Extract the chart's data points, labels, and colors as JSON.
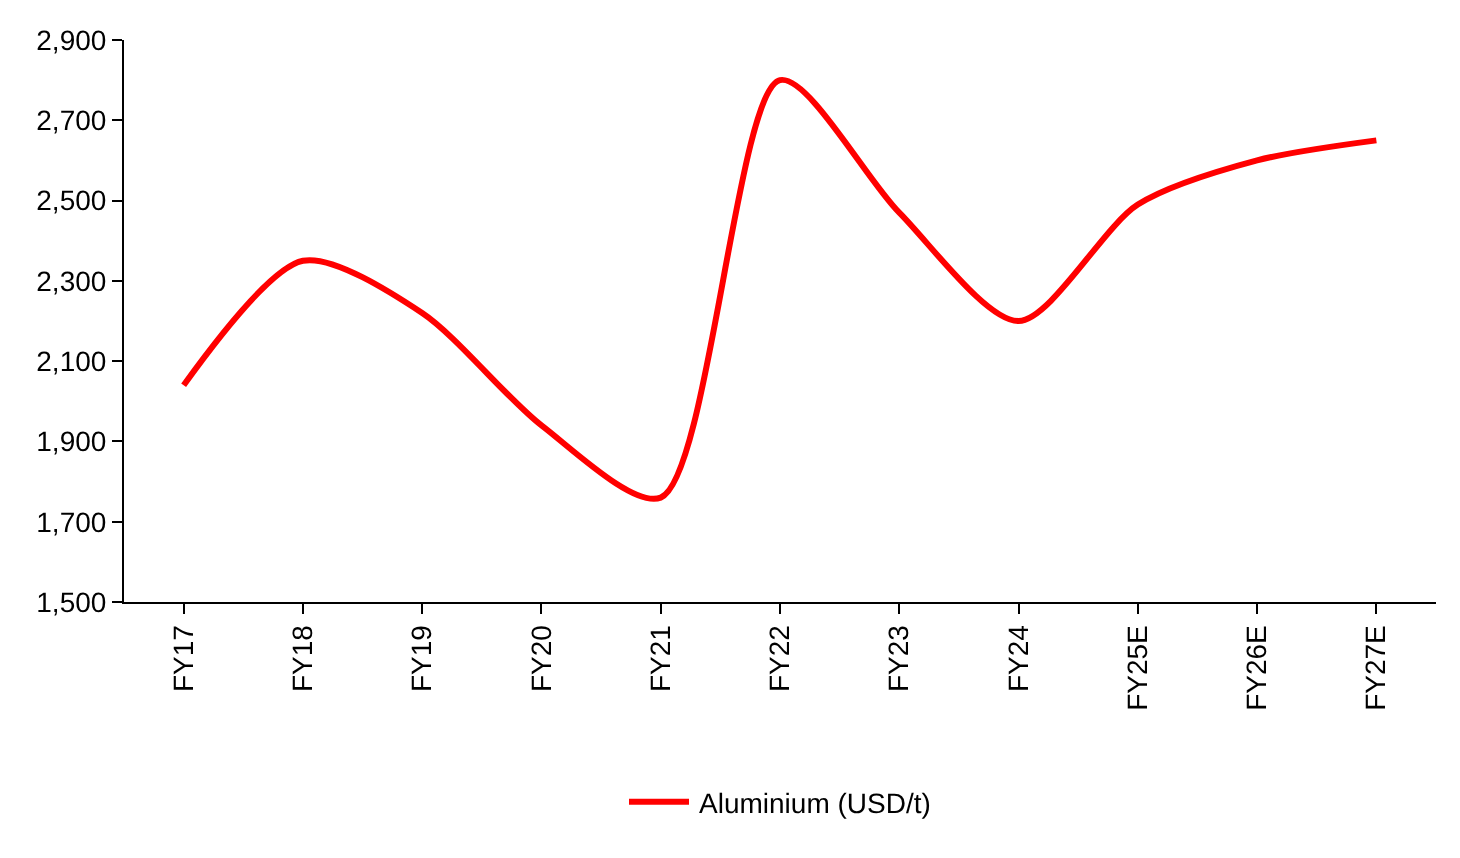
{
  "chart_data": {
    "type": "line",
    "categories": [
      "FY17",
      "FY18",
      "FY19",
      "FY20",
      "FY21",
      "FY22",
      "FY23",
      "FY24",
      "FY25E",
      "FY26E",
      "FY27E"
    ],
    "series": [
      {
        "name": "Aluminium (USD/t)",
        "color": "#ff0000",
        "values": [
          2040,
          2350,
          2220,
          1940,
          1760,
          2800,
          2470,
          2200,
          2490,
          2600,
          2650
        ]
      }
    ],
    "ylim": [
      1500,
      2900
    ],
    "yticks": [
      {
        "value": 1500,
        "label": "1,500"
      },
      {
        "value": 1700,
        "label": "1,700"
      },
      {
        "value": 1900,
        "label": "1,900"
      },
      {
        "value": 2100,
        "label": "2,100"
      },
      {
        "value": 2300,
        "label": "2,300"
      },
      {
        "value": 2500,
        "label": "2,500"
      },
      {
        "value": 2700,
        "label": "2,700"
      },
      {
        "value": 2900,
        "label": "2,900"
      }
    ],
    "legend": "bottom",
    "marker": "none",
    "line_style": "solid"
  }
}
